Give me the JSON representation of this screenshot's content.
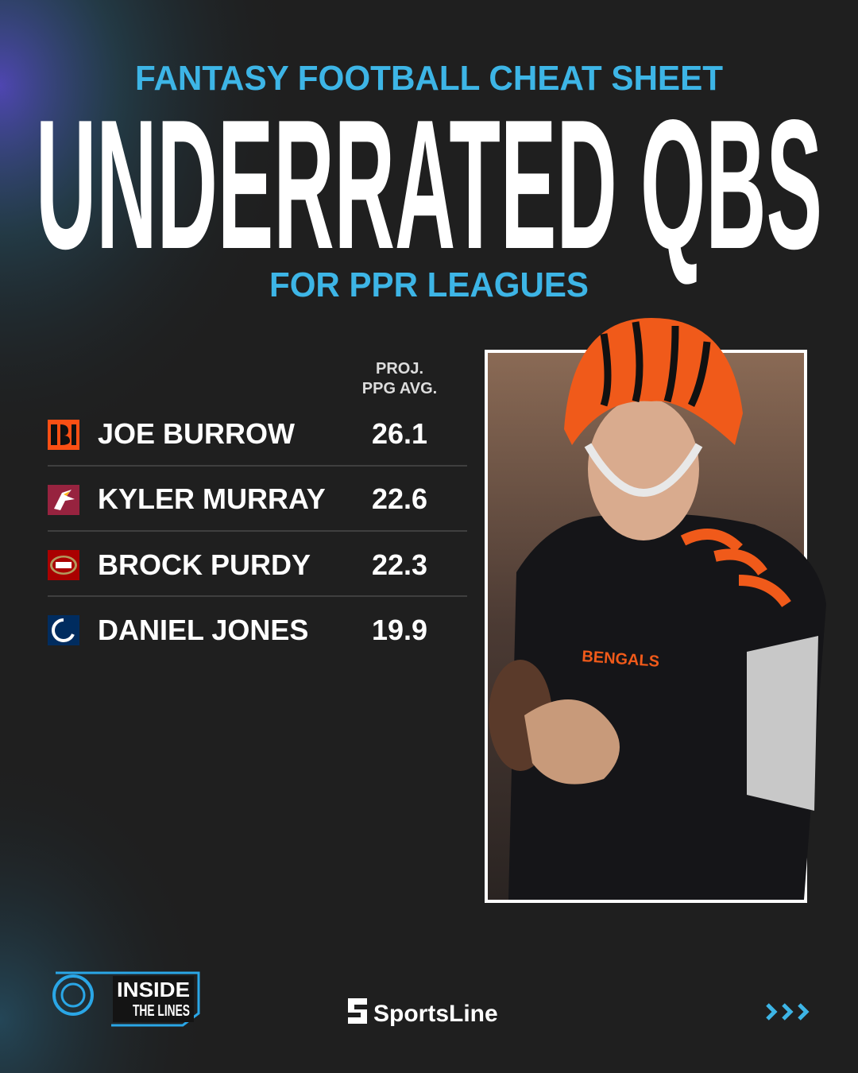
{
  "header": {
    "kicker": "FANTASY FOOTBALL CHEAT SHEET",
    "title": "UNDERRATED QBS",
    "subtitle": "FOR PPR LEAGUES"
  },
  "table": {
    "column_header": [
      "PROJ.",
      "PPG AVG."
    ],
    "rows": [
      [
        "JOE BURROW",
        26.1
      ],
      [
        "KYLER MURRAY",
        22.6
      ],
      [
        "BROCK PURDY",
        22.3
      ],
      [
        "DANIEL JONES",
        19.9
      ]
    ]
  },
  "footer": {
    "show_logo": [
      "INSIDE",
      "THE LINES"
    ],
    "brand": "SportsLine"
  }
}
